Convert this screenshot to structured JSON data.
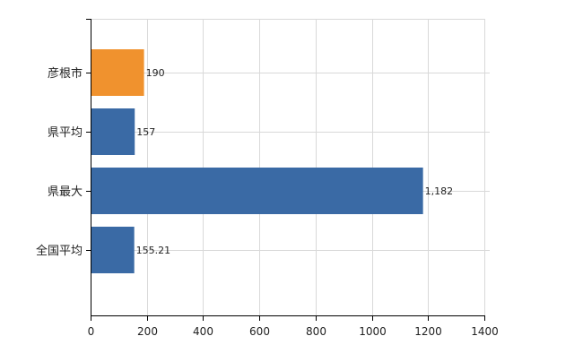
{
  "chart_data": {
    "type": "bar",
    "orientation": "horizontal",
    "categories": [
      "彦根市",
      "県平均",
      "県最大",
      "全国平均"
    ],
    "values": [
      190,
      157,
      1182,
      155.21
    ],
    "data_labels": [
      "190",
      "157",
      "1,182",
      "155.21"
    ],
    "bar_colors": [
      "#f0922e",
      "#3a6aa5",
      "#3a6aa5",
      "#3a6aa5"
    ],
    "title": "",
    "xlabel": "",
    "ylabel": "",
    "xlim": [
      0,
      1400
    ],
    "x_ticks": [
      0,
      200,
      400,
      600,
      800,
      1000,
      1200,
      1400
    ],
    "grid": true,
    "legend": "none"
  }
}
